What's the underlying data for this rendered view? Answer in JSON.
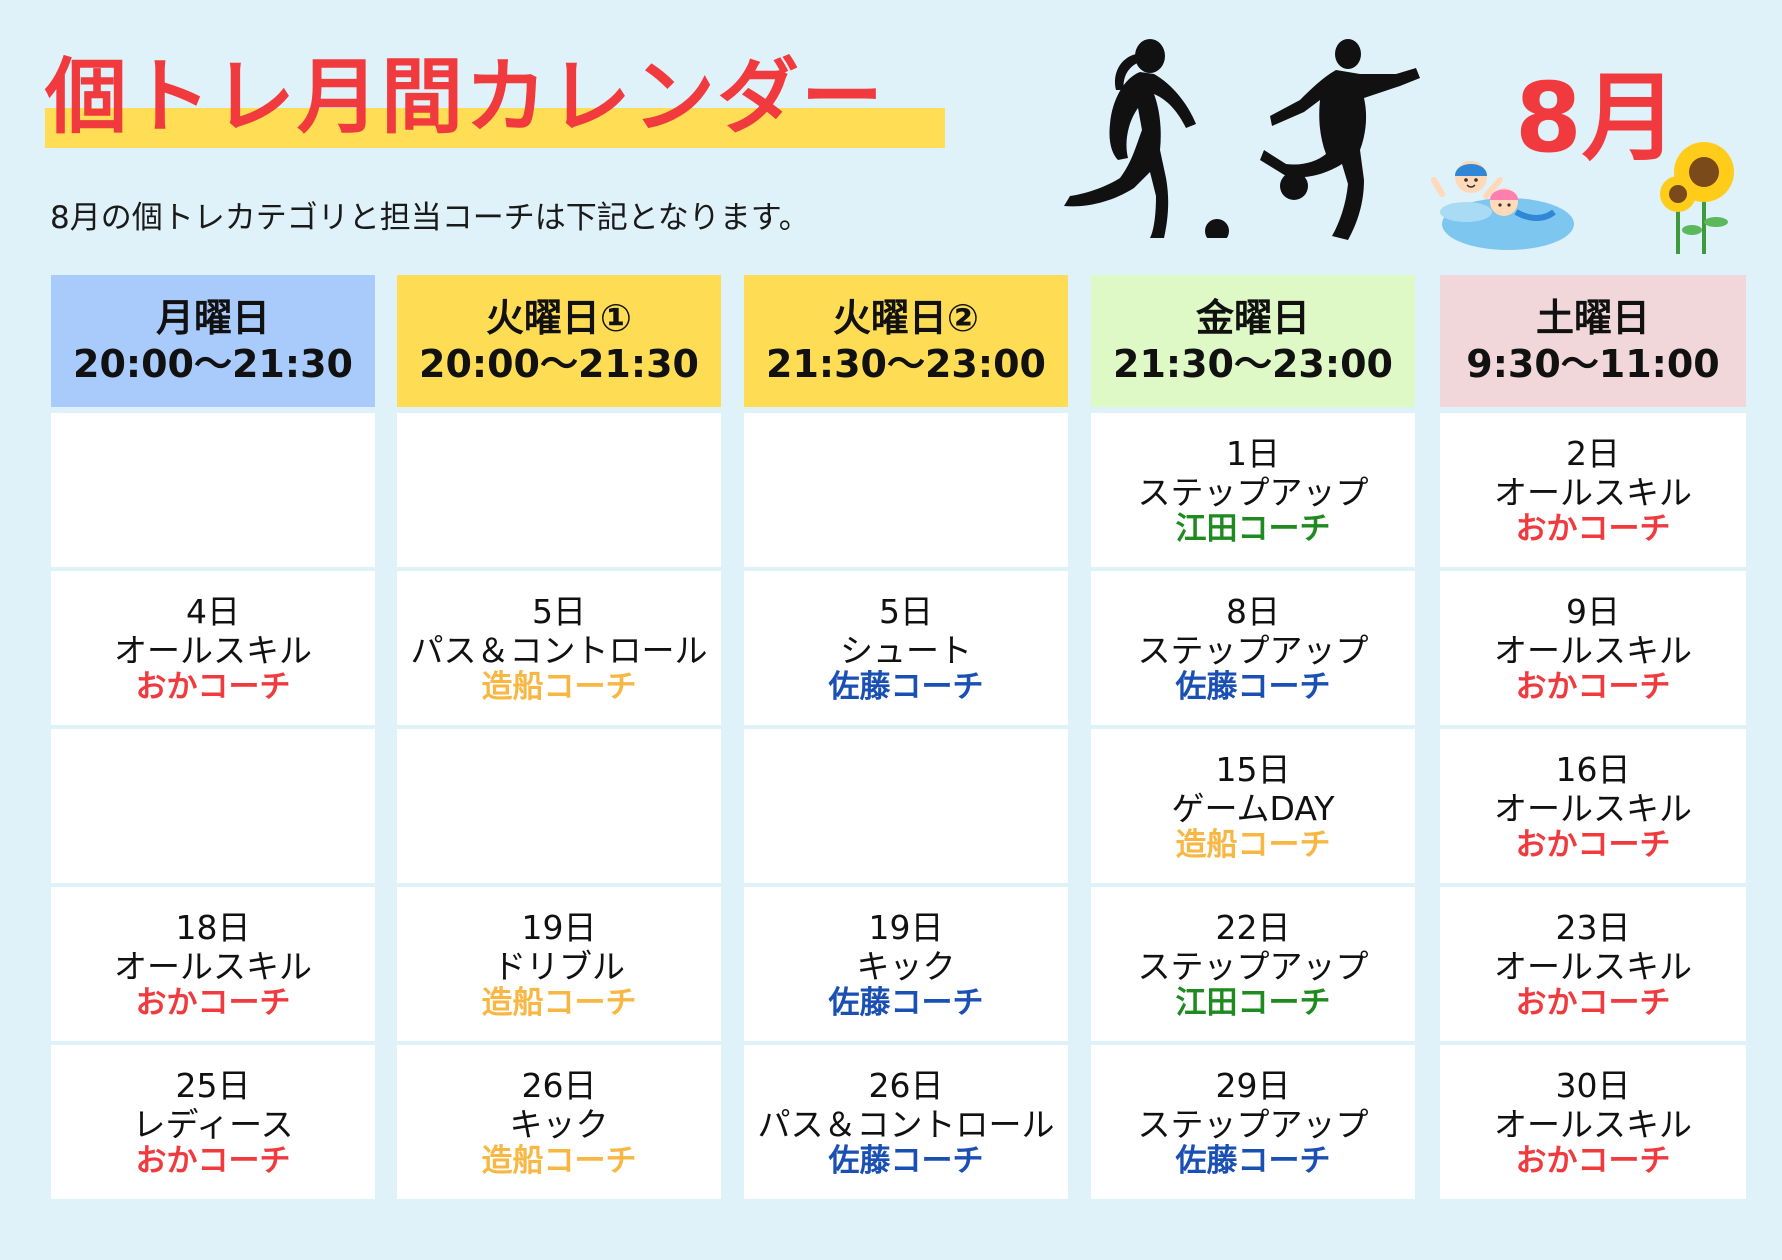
{
  "header": {
    "title": "個トレ月間カレンダー",
    "subtitle": "8月の個トレカテゴリと担当コーチは下記となります。",
    "month": "8月"
  },
  "coach_colors": {
    "おかコーチ": "#f03a3e",
    "造船コーチ": "#f8b642",
    "佐藤コーチ": "#1a4fb3",
    "江田コーチ": "#1f8a1f"
  },
  "columns": [
    {
      "day": "月曜日",
      "time": "20:00〜21:30",
      "color": "#a9cbfb",
      "cells": [
        null,
        {
          "date": "4日",
          "category": "オールスキル",
          "coach": "おかコーチ"
        },
        null,
        {
          "date": "18日",
          "category": "オールスキル",
          "coach": "おかコーチ"
        },
        {
          "date": "25日",
          "category": "レディース",
          "coach": "おかコーチ"
        }
      ]
    },
    {
      "day": "火曜日①",
      "time": "20:00〜21:30",
      "color": "#fedd55",
      "cells": [
        null,
        {
          "date": "5日",
          "category": "パス＆コントロール",
          "coach": "造船コーチ"
        },
        null,
        {
          "date": "19日",
          "category": "ドリブル",
          "coach": "造船コーチ"
        },
        {
          "date": "26日",
          "category": "キック",
          "coach": "造船コーチ"
        }
      ]
    },
    {
      "day": "火曜日②",
      "time": "21:30〜23:00",
      "color": "#fedd55",
      "cells": [
        null,
        {
          "date": "5日",
          "category": "シュート",
          "coach": "佐藤コーチ"
        },
        null,
        {
          "date": "19日",
          "category": "キック",
          "coach": "佐藤コーチ"
        },
        {
          "date": "26日",
          "category": "パス＆コントロール",
          "coach": "佐藤コーチ"
        }
      ]
    },
    {
      "day": "金曜日",
      "time": "21:30〜23:00",
      "color": "#dff9c6",
      "cells": [
        {
          "date": "1日",
          "category": "ステップアップ",
          "coach": "江田コーチ"
        },
        {
          "date": "8日",
          "category": "ステップアップ",
          "coach": "佐藤コーチ"
        },
        {
          "date": "15日",
          "category": "ゲームDAY",
          "coach": "造船コーチ"
        },
        {
          "date": "22日",
          "category": "ステップアップ",
          "coach": "江田コーチ"
        },
        {
          "date": "29日",
          "category": "ステップアップ",
          "coach": "佐藤コーチ"
        }
      ]
    },
    {
      "day": "土曜日",
      "time": "9:30〜11:00",
      "color": "#f1d7da",
      "cells": [
        {
          "date": "2日",
          "category": "オールスキル",
          "coach": "おかコーチ"
        },
        {
          "date": "9日",
          "category": "オールスキル",
          "coach": "おかコーチ"
        },
        {
          "date": "16日",
          "category": "オールスキル",
          "coach": "おかコーチ"
        },
        {
          "date": "23日",
          "category": "オールスキル",
          "coach": "おかコーチ"
        },
        {
          "date": "30日",
          "category": "オールスキル",
          "coach": "おかコーチ"
        }
      ]
    }
  ]
}
